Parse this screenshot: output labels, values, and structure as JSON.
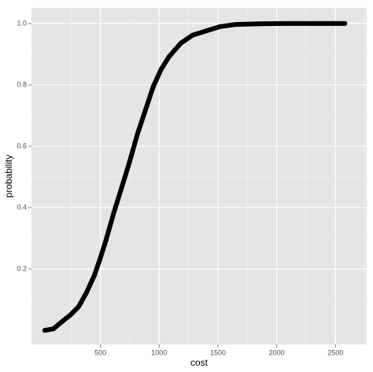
{
  "chart_data": {
    "type": "scatter",
    "x_label": "cost",
    "y_label": "probability",
    "series": [
      {
        "color": "#000000",
        "x": [
          27,
          100,
          181,
          247,
          314,
          381,
          448,
          495,
          548,
          615,
          682,
          749,
          816,
          883,
          950,
          1017,
          1084,
          1184,
          1284,
          1385,
          1518,
          1652,
          1853,
          2054,
          2300,
          2330,
          2390,
          2430,
          2580
        ],
        "values": [
          0.0,
          0.005,
          0.031,
          0.051,
          0.077,
          0.123,
          0.179,
          0.231,
          0.295,
          0.385,
          0.467,
          0.551,
          0.641,
          0.718,
          0.795,
          0.851,
          0.892,
          0.936,
          0.962,
          0.974,
          0.99,
          0.997,
          0.999,
          1.0,
          1.0,
          1.0,
          1.0,
          1.0,
          1.0
        ]
      }
    ],
    "xlim": [
      -87,
      2766
    ],
    "ylim": [
      -0.046,
      1.051
    ],
    "xticks": [
      500,
      1000,
      1500,
      2000,
      2500
    ],
    "yticks": [
      0.2,
      0.4,
      0.6,
      0.8,
      {
        "value": 1,
        "label": "1.0"
      }
    ],
    "x_minor_ticks": [
      250,
      750,
      1250,
      1750,
      2250,
      2750
    ],
    "y_minor_ticks": [
      0.1,
      0.3,
      0.5,
      0.7,
      0.9
    ],
    "grid": true
  }
}
